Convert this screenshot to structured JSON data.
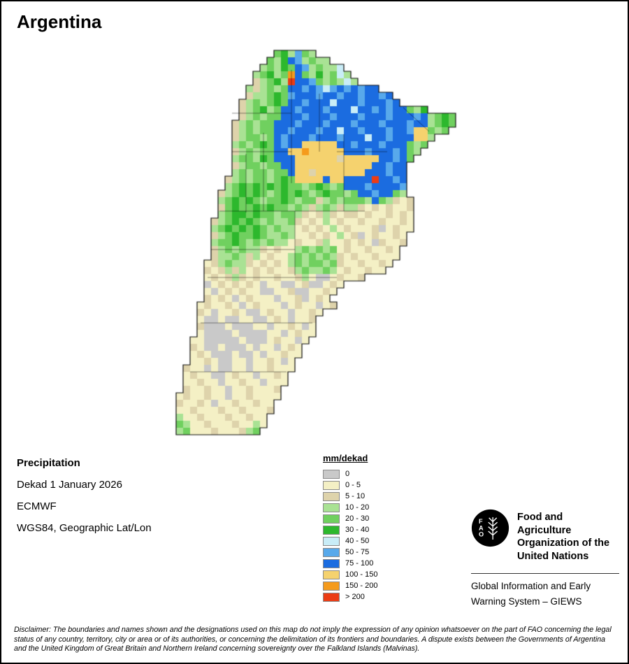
{
  "title": "Argentina",
  "info": {
    "layer_title": "Precipitation",
    "dekad": "Dekad 1 January 2026",
    "source": "ECMWF",
    "projection": "WGS84, Geographic Lat/Lon"
  },
  "legend": {
    "title": "mm/dekad",
    "entries": [
      {
        "label": "0",
        "color": "#c9c9c9"
      },
      {
        "label": "0 - 5",
        "color": "#f4f0c5"
      },
      {
        "label": "5 - 10",
        "color": "#ded3ab"
      },
      {
        "label": "10 - 20",
        "color": "#a9e294"
      },
      {
        "label": "20 - 30",
        "color": "#70d05f"
      },
      {
        "label": "30 - 40",
        "color": "#2db82d"
      },
      {
        "label": "40 - 50",
        "color": "#c9edf7"
      },
      {
        "label": "50 - 75",
        "color": "#58a9eb"
      },
      {
        "label": "75 - 100",
        "color": "#1b6ce0"
      },
      {
        "label": "100 - 150",
        "color": "#f5d26e"
      },
      {
        "label": "150 - 200",
        "color": "#f59b1c"
      },
      {
        "label": "> 200",
        "color": "#eb3c14"
      }
    ]
  },
  "map": {
    "palette": {
      "0": "#c9c9c9",
      "1": "#f4f0c5",
      "2": "#ded3ab",
      "3": "#a9e294",
      "4": "#70d05f",
      "5": "#2db82d",
      "6": "#c9edf7",
      "7": "#58a9eb",
      "8": "#1b6ce0",
      "9": "#f5d26e",
      "A": "#f59b1c",
      "B": "#eb3c14"
    },
    "cell_size": 10,
    "rows": [
      {
        "s": 14,
        "c": "453743"
      },
      {
        "s": 13,
        "c": "435873433"
      },
      {
        "s": 12,
        "c": "343548734336"
      },
      {
        "s": 11,
        "c": "34534A84353463"
      },
      {
        "s": 11,
        "c": "23453B887434363"
      },
      {
        "s": 10,
        "c": "3234348878767878788"
      },
      {
        "s": 10,
        "c": "233454788878878878878"
      },
      {
        "s": 9,
        "c": "23434548878886888788878"
      },
      {
        "s": 9,
        "c": "234534887888788868878788435"
      },
      {
        "s": 9,
        "c": "2343448887888788878887888783454"
      },
      {
        "s": 8,
        "c": "23434488878887888788878887883454"
      },
      {
        "s": 8,
        "c": "2343448878887886887888788799434"
      },
      {
        "s": 8,
        "c": "23443487888788878886887888993"
      },
      {
        "s": 8,
        "c": "3434548788999998878887888434"
      },
      {
        "s": 8,
        "c": "2343448899A9999988878887843"
      },
      {
        "s": 8,
        "c": "34435488899999929999988784"
      },
      {
        "s": 8,
        "c": "2344344889999999999988788"
      },
      {
        "s": 8,
        "c": "3434434489929999999888788"
      },
      {
        "s": 7,
        "c": "234344345499998998888B8878"
      },
      {
        "s": 7,
        "c": "34545454544345434888788887"
      },
      {
        "s": 6,
        "c": "234545434545434544348878843"
      },
      {
        "s": 6,
        "c": "3454543445434423434443843212"
      },
      {
        "s": 6,
        "c": "2454454544343234323321212112"
      },
      {
        "s": 6,
        "c": "3455454434432123212212112121"
      },
      {
        "s": 5,
        "c": "23454543433421213121121121121"
      },
      {
        "s": 5,
        "c": "34545454343312121312111201211"
      },
      {
        "s": 5,
        "c": "2345445433431121213120121121"
      },
      {
        "s": 5,
        "c": "3445434343312112311212102112"
      },
      {
        "s": 5,
        "c": "234343321211343434121121121"
      },
      {
        "s": 5,
        "c": "233432312113434343212112111"
      },
      {
        "s": 4,
        "c": "123433212121343443421121121"
      },
      {
        "s": 4,
        "c": "21232312121123433431211211"
      },
      {
        "s": 4,
        "c": "12123212112112310012112"
      },
      {
        "s": 4,
        "c": "01212121011001200121"
      },
      {
        "s": 4,
        "c": "1012121100112001121"
      },
      {
        "s": 4,
        "c": "212101211101120121"
      },
      {
        "s": 3,
        "c": "12112101211101211012"
      },
      {
        "s": 3,
        "c": "210112100121101121"
      },
      {
        "s": 3,
        "c": "10010011001210112"
      },
      {
        "s": 3,
        "c": "20001000110112101"
      },
      {
        "s": 3,
        "c": "10000100001101211"
      },
      {
        "s": 2,
        "c": "11000001000121101"
      },
      {
        "s": 2,
        "c": "2100100010110121"
      },
      {
        "s": 2,
        "c": "1210001001011211"
      },
      {
        "s": 2,
        "c": "112100110112101"
      },
      {
        "s": 1,
        "c": "2110100110112111"
      },
      {
        "s": 1,
        "c": "121100121101121"
      },
      {
        "s": 1,
        "c": "112110112110111"
      },
      {
        "s": 1,
        "c": "21121101121112"
      },
      {
        "s": 0,
        "c": "121121101121111"
      },
      {
        "s": 0,
        "c": "21121011211211"
      },
      {
        "s": 0,
        "c": "11211121121112"
      },
      {
        "s": 0,
        "c": "3112111211211"
      },
      {
        "s": 0,
        "c": "4311211121131"
      },
      {
        "s": 0,
        "c": "341112111234"
      }
    ]
  },
  "footer": {
    "fao_letters": [
      "F",
      "A",
      "O"
    ],
    "org_lines": [
      "Food and Agriculture",
      "Organization of the",
      "United Nations"
    ],
    "giews_lines": [
      "Global Information and Early",
      "Warning System – GIEWS"
    ]
  },
  "disclaimer_lines": [
    "Disclaimer: The boundaries and names shown and the designations used on this map do not imply the expression of any opinion whatsoever on the part of FAO concerning the legal",
    "status of any country, territory, city or area or of its authorities, or concerning the delimitation of its frontiers and boundaries. A dispute exists between the Governments of Argentina",
    "and the United Kingdom of Great Britain and Northern Ireland concerning sovereignty over the Falkland Islands (Malvinas)."
  ]
}
